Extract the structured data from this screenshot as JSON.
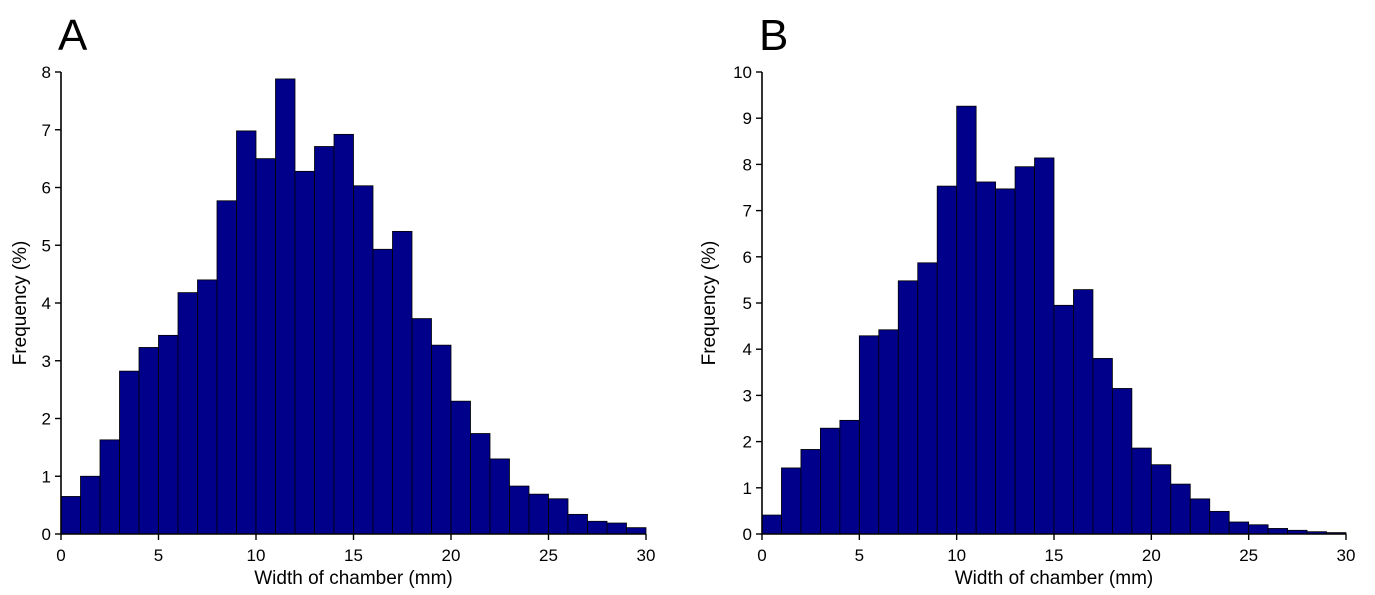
{
  "chart_data": [
    {
      "type": "bar",
      "panel_label": "A",
      "xlabel": "Width of chamber (mm)",
      "ylabel": "Frequency (%)",
      "xlim": [
        0,
        30
      ],
      "ylim": [
        0,
        8
      ],
      "xticks": [
        "0",
        "5",
        "10",
        "15",
        "20",
        "25",
        "30"
      ],
      "yticks": [
        "0",
        "1",
        "2",
        "3",
        "4",
        "5",
        "6",
        "7",
        "8"
      ],
      "bin_width": 1,
      "bins": [
        0.5,
        1.5,
        2.5,
        3.5,
        4.5,
        5.5,
        6.5,
        7.5,
        8.5,
        9.5,
        10.5,
        11.5,
        12.5,
        13.5,
        14.5,
        15.5,
        16.5,
        17.5,
        18.5,
        19.5,
        20.5,
        21.5,
        22.5,
        23.5,
        24.5,
        25.5,
        26.5,
        27.5,
        28.5,
        29.5
      ],
      "values": [
        0.65,
        1.0,
        1.63,
        2.82,
        3.23,
        3.44,
        4.18,
        4.4,
        5.77,
        6.98,
        6.5,
        7.88,
        6.28,
        6.71,
        6.92,
        6.03,
        4.93,
        5.24,
        3.73,
        3.27,
        2.3,
        1.74,
        1.3,
        0.83,
        0.69,
        0.61,
        0.34,
        0.22,
        0.19,
        0.11
      ],
      "bar_color": "#00008b",
      "grid": false
    },
    {
      "type": "bar",
      "panel_label": "B",
      "xlabel": "Width of chamber (mm)",
      "ylabel": "Frequency (%)",
      "xlim": [
        0,
        30
      ],
      "ylim": [
        0,
        10
      ],
      "xticks": [
        "0",
        "5",
        "10",
        "15",
        "20",
        "25",
        "30"
      ],
      "yticks": [
        "0",
        "1",
        "2",
        "3",
        "4",
        "5",
        "6",
        "7",
        "8",
        "9",
        "10"
      ],
      "bin_width": 1,
      "bins": [
        0.5,
        1.5,
        2.5,
        3.5,
        4.5,
        5.5,
        6.5,
        7.5,
        8.5,
        9.5,
        10.5,
        11.5,
        12.5,
        13.5,
        14.5,
        15.5,
        16.5,
        17.5,
        18.5,
        19.5,
        20.5,
        21.5,
        22.5,
        23.5,
        24.5,
        25.5,
        26.5,
        27.5,
        28.5,
        29.5
      ],
      "values": [
        0.41,
        1.43,
        1.83,
        2.29,
        2.46,
        4.29,
        4.42,
        5.48,
        5.87,
        7.53,
        9.26,
        7.62,
        7.47,
        7.95,
        8.14,
        4.95,
        5.29,
        3.8,
        3.15,
        1.86,
        1.5,
        1.08,
        0.76,
        0.49,
        0.26,
        0.2,
        0.12,
        0.08,
        0.05,
        0.03
      ],
      "bar_color": "#00008b",
      "grid": false
    }
  ]
}
